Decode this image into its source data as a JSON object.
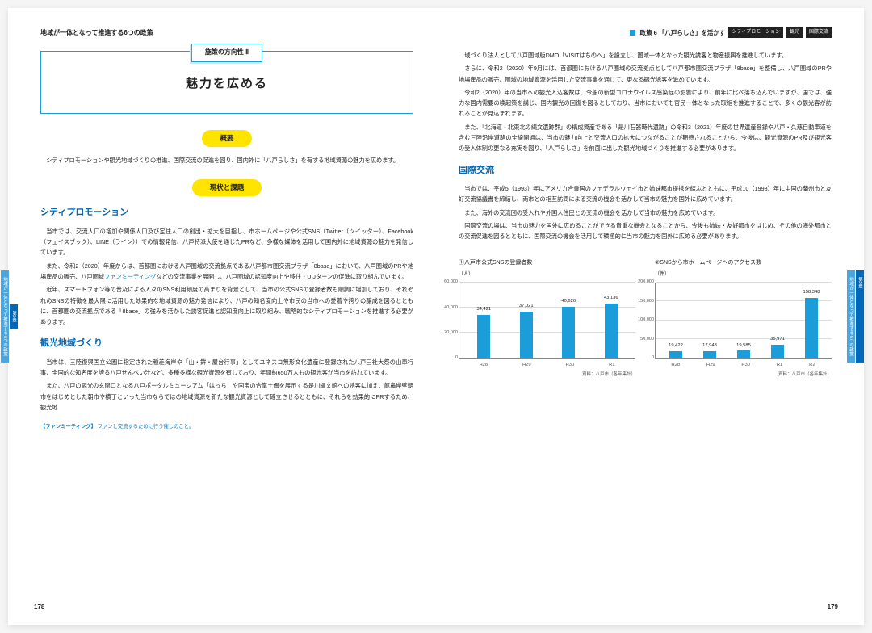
{
  "left": {
    "header": "地域が一体となって推進する6つの政策",
    "subtitle": "施策の方向性 Ⅱ",
    "maintitle": "魅力を広める",
    "pill_overview": "概要",
    "overview_text": "シティプロモーションや観光地域づくりの推進、国際交流の促進を図り、国内外に「八戸らしさ」を有する地域資源の魅力を広めます。",
    "pill_status": "現状と課題",
    "sec1_head": "シティプロモーション",
    "sec1_p1": "当市では、交流人口の増加や関係人口及び定住人口の創出・拡大を目指し、市ホームページや公式SNS（Twitter（ツイッター）、Facebook（フェイスブック）、LINE（ライン））での情報発信、八戸特派大使を通じたPRなど、多様な媒体を活用して国内外に地域資源の魅力を発信しています。",
    "sec1_p2a": "また、令和2（2020）年度からは、首都圏における八戸圏域の交流拠点である八戸都市圏交流プラザ「8base」において、八戸圏域のPRや地場産品の販売、八戸圏域",
    "sec1_p2_link": "ファンミーティング",
    "sec1_p2b": "などの交流事業を展開し、八戸圏域の認知度向上や移住・UIJターンの促進に取り組んでいます。",
    "sec1_p3": "近年、スマートフォン等の普及による人々のSNS利用頻度の高まりを背景として、当市の公式SNSの登録者数も順調に増加しており、それぞれのSNSの特徴を最大限に活用した効果的な地域資源の魅力発信により、八戸の知名度向上や市民の当市への愛着や誇りの醸成を図るとともに、首都圏の交流拠点である「8base」の強みを活かした誘客促進と認知度向上に取り組み、戦略的なシティプロモーションを推進する必要があります。",
    "sec2_head": "観光地域づくり",
    "sec2_p1": "当市は、三陸復興国立公園に指定された種差海岸や「山・鉾・屋台行事」としてユネスコ無形文化遺産に登録された八戸三社大祭の山車行事、全国的な知名度を誇る八戸せんべい汁など、多種多様な観光資源を有しており、年間約650万人もの観光客が当市を訪れています。",
    "sec2_p2": "また、八戸の観光の玄関口となる八戸ポータルミュージアム「はっち」や国宝の合掌土偶を展示する是川縄文館への誘客に加え、館鼻岸壁朝市をはじめとした朝市や横丁といった当市ならではの地域資源を新たな観光資源として確立させるとともに、それらを効果的にPRするため、観光地",
    "footnote_label": "【ファンミーティング】",
    "footnote_text": "ファンと交流するために行う催しのこと。",
    "pagenum": "178"
  },
  "right": {
    "header_sq": "■",
    "header_policy": "政策 6 「八戸らしさ」を活かす",
    "tags": [
      "シティプロモーション",
      "観光",
      "国際交流"
    ],
    "p1": "域づくり法人として八戸圏域版DMO「VISITはちのへ」を設立し、圏域一体となった観光誘客と物産振興を推進しています。",
    "p2": "さらに、令和2（2020）年9月には、首都圏における八戸圏域の交流拠点として八戸都市圏交流プラザ「8base」を整備し、八戸圏域のPRや地場産品の販売、圏域の地域資源を活用した交流事業を通じて、更なる観光誘客を進めています。",
    "p3": "令和2（2020）年の当市への観光入込客数は、今般の新型コロナウイルス感染症の影響により、前年に比べ落ち込んでいますが、国では、強力な国内需要の喚起策を講じ、国内観光の回復を図るとしており、当市においても官民一体となった取組を推進することで、多くの観光客が訪れることが見込まれます。",
    "p4": "また、「北海道・北東北の縄文遺跡群」の構成資産である「是川石器時代遺跡」の令和3（2021）年度の世界遺産登録や八戸・久慈自動車道を含む三陸沿岸道路の全線開通は、当市の魅力向上と交流人口の拡大につながることが期待されることから、今後は、観光資源のPR及び観光客の受入体制の更なる充実を図り、「八戸らしさ」を前面に出した観光地域づくりを推進する必要があります。",
    "sec3_head": "国際交流",
    "sec3_p1": "当市では、平成5（1993）年にアメリカ合衆国のフェデラルウェイ市と姉妹都市提携を結ぶとともに、平成10（1998）年に中国の蘭州市と友好交流協議書を締結し、両市との相互訪問による交流の機会を活かして当市の魅力を国外に広めています。",
    "sec3_p2": "また、海外の交流団の受入れや外国人住民との交流の機会を活かして当市の魅力を広めています。",
    "sec3_p3": "国際交流の場は、当市の魅力を国外に広めることができる貴重な機会となることから、今後も姉妹・友好都市をはじめ、その他の海外都市との交流促進を図るとともに、国際交流の機会を活用して積極的に当市の魅力を国外に広める必要があります。",
    "pagenum": "179"
  },
  "chart1": {
    "title": "①八戸市公式SNSの登録者数",
    "unit": "（人）",
    "ymax": 60000,
    "ystep": 20000,
    "yticks": [
      "0",
      "20,000",
      "40,000",
      "60,000"
    ],
    "categories": [
      "H28",
      "H29",
      "H30",
      "R1"
    ],
    "values": [
      34421,
      37021,
      40626,
      43136
    ],
    "labels": [
      "34,421",
      "37,021",
      "40,626",
      "43,136"
    ],
    "bar_color": "#1a9dd9",
    "source": "資料：八戸市（各年集計）"
  },
  "chart2": {
    "title": "②SNSから市ホームページへのアクセス数",
    "unit": "（件）",
    "ymax": 200000,
    "ystep": 50000,
    "yticks": [
      "0",
      "50,000",
      "100,000",
      "150,000",
      "200,000"
    ],
    "categories": [
      "H28",
      "H29",
      "H30",
      "R1",
      "R2"
    ],
    "values": [
      19422,
      17943,
      19585,
      35971,
      158348
    ],
    "labels": [
      "19,422",
      "17,943",
      "19,585",
      "35,971",
      "158,348"
    ],
    "bar_color": "#1a9dd9",
    "source": "資料：八戸市（各年集計）"
  },
  "sidetab": {
    "a": "第5章",
    "b": "地域が一体となって推進する\n6つの政策"
  }
}
